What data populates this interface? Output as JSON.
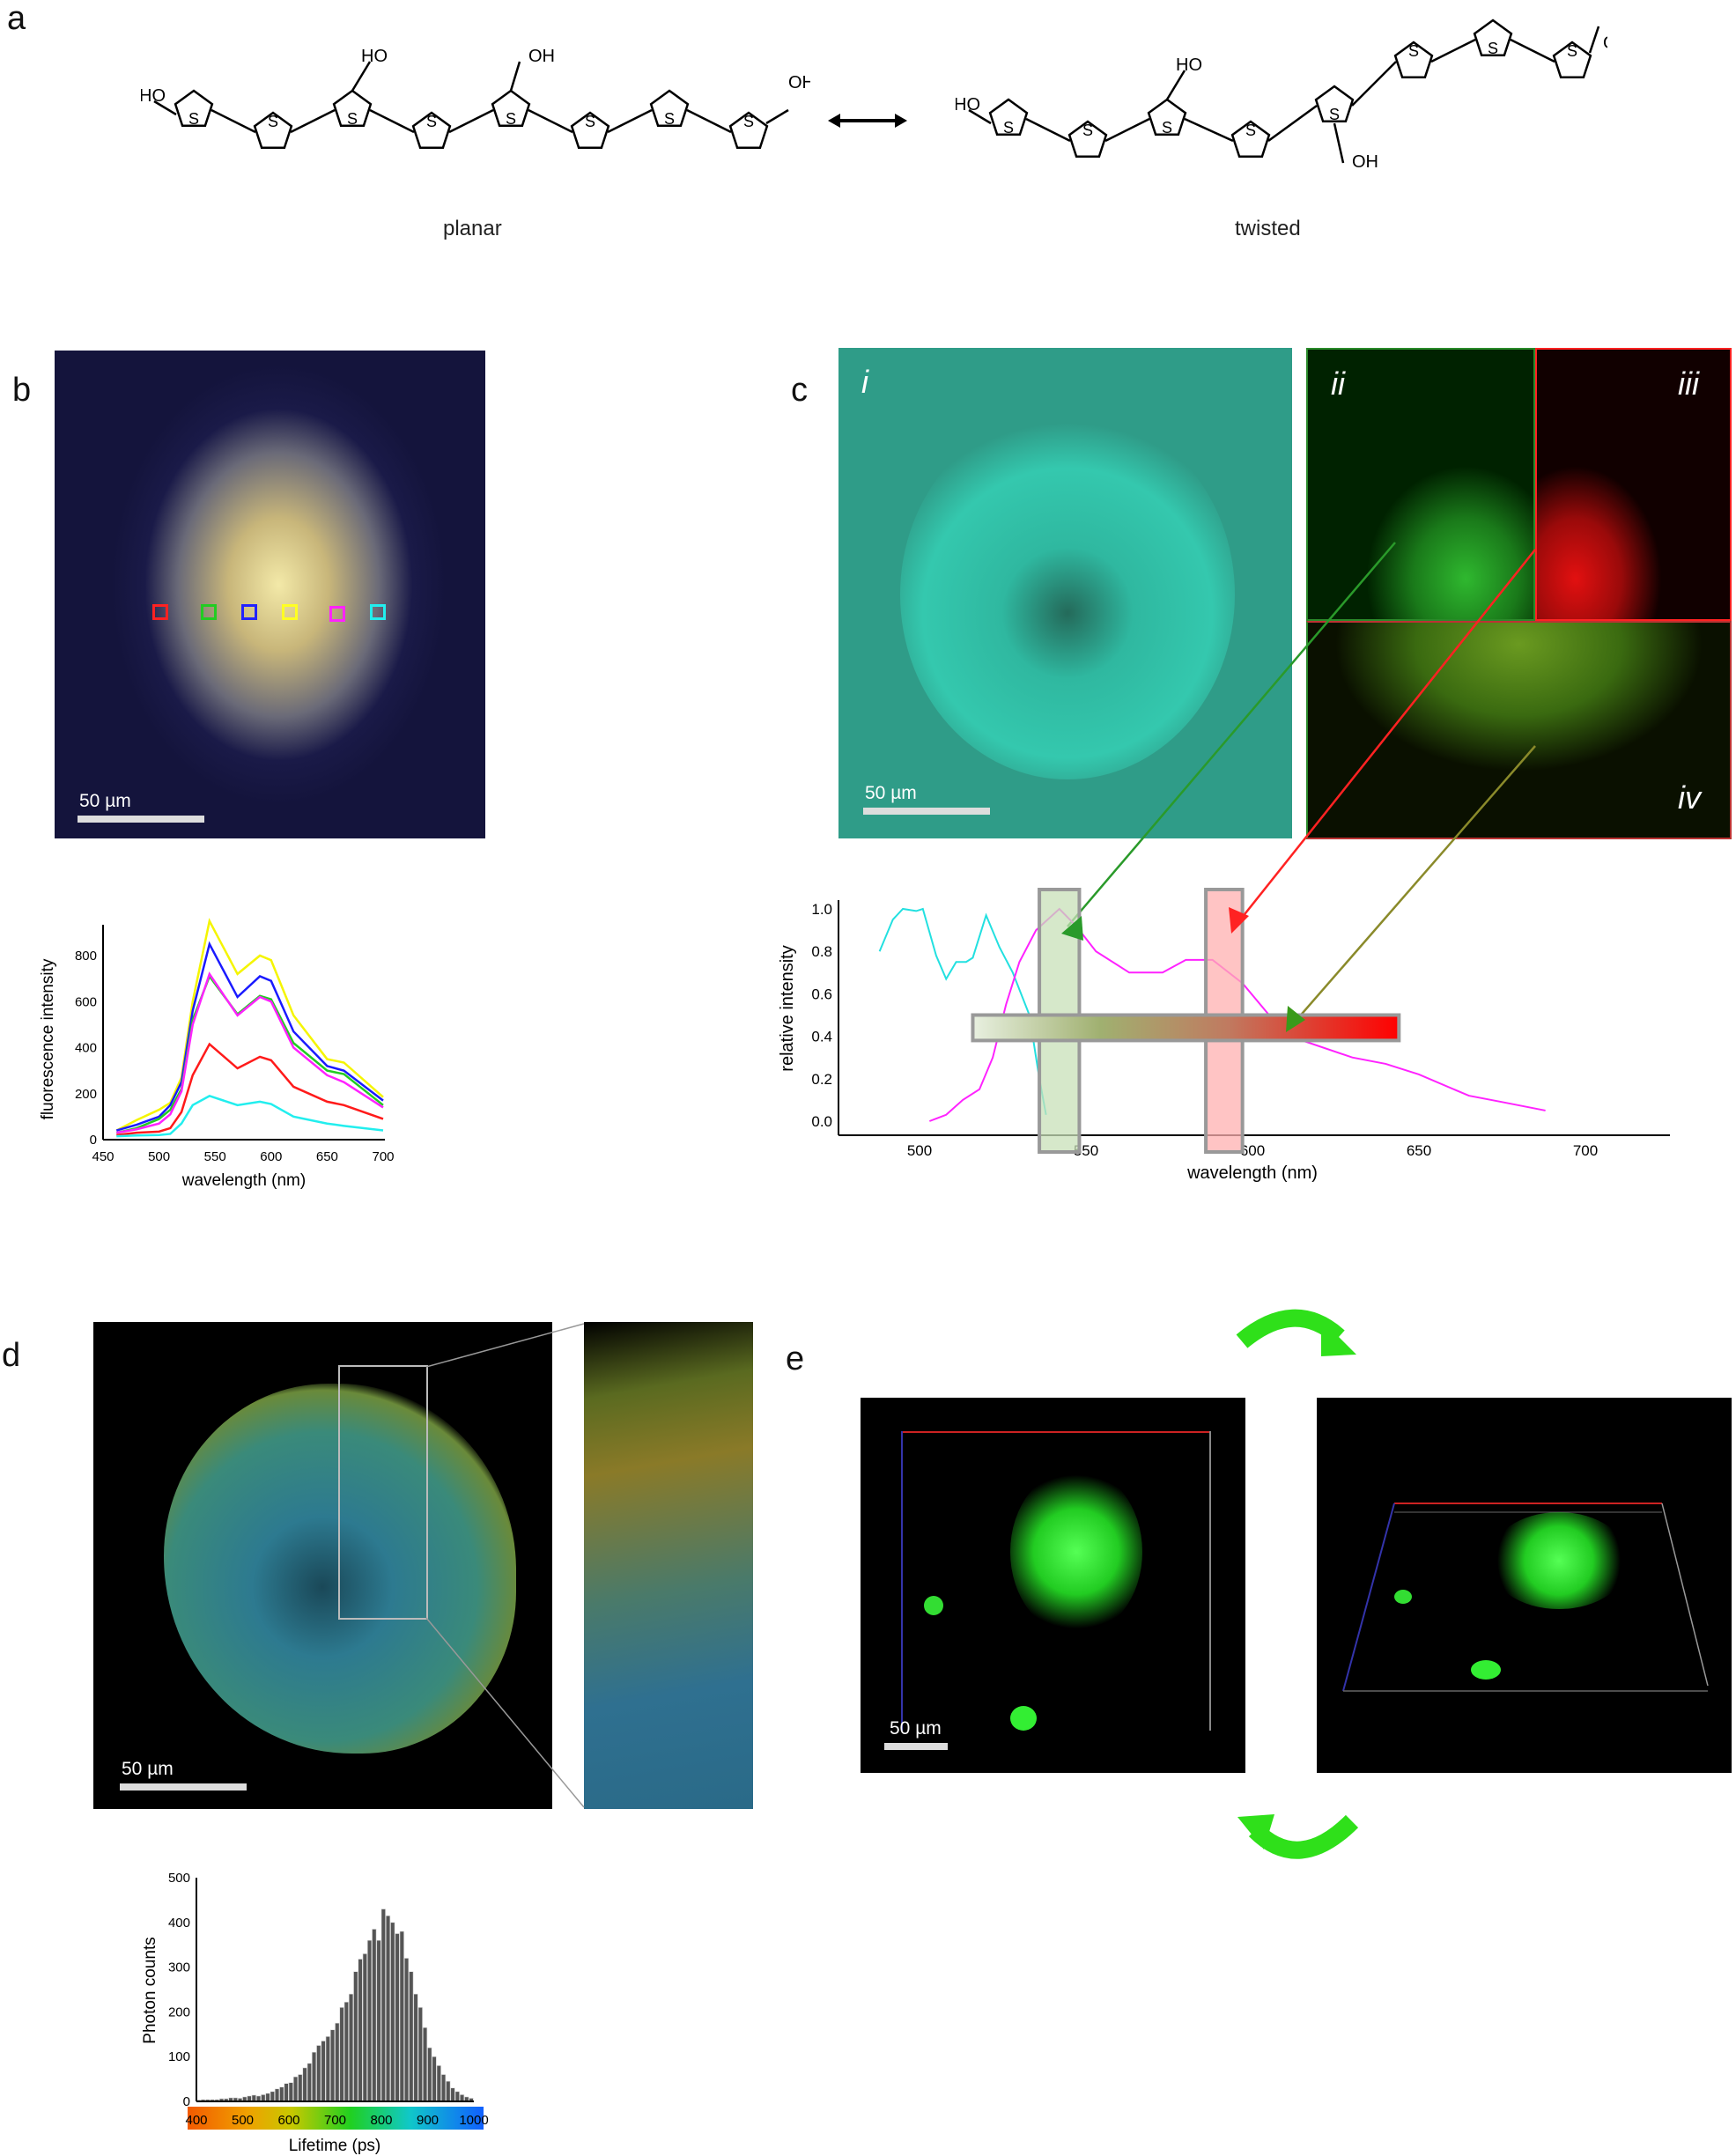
{
  "panels": {
    "a": "a",
    "b": "b",
    "c": "c",
    "d": "d",
    "e": "e"
  },
  "panel_a": {
    "planar_label": "planar",
    "twisted_label": "twisted",
    "atoms": {
      "ho": "HO",
      "oh": "OH",
      "s": "S",
      "o": "O"
    }
  },
  "panel_b": {
    "scale_label": "50 µm"
  },
  "panel_c": {
    "scale_label": "50 µm",
    "sub": [
      "i",
      "ii",
      "iii",
      "iv"
    ]
  },
  "panel_d": {
    "scale_label": "50 µm"
  },
  "panel_e": {
    "scale_label": "50 µm"
  },
  "colors": {
    "green_arrow": "#2fe01a",
    "red": "#ff1a1a",
    "green_frame": "#2a8a2a"
  },
  "chart_data": [
    {
      "type": "line",
      "id": "b",
      "xlabel": "wavelength (nm)",
      "ylabel": "fluorescence intensity",
      "xlim": [
        450,
        700
      ],
      "ylim": [
        0,
        950
      ],
      "xticks": [
        450,
        500,
        550,
        600,
        650,
        700
      ],
      "yticks": [
        0,
        200,
        400,
        600,
        800
      ],
      "x": [
        462,
        480,
        500,
        510,
        520,
        530,
        545,
        570,
        590,
        600,
        620,
        650,
        665,
        700
      ],
      "series": [
        {
          "name": "yellow",
          "color": "#f5f500",
          "values": [
            40,
            85,
            130,
            160,
            270,
            600,
            950,
            720,
            800,
            780,
            540,
            350,
            335,
            185
          ]
        },
        {
          "name": "blue",
          "color": "#1a1aff",
          "values": [
            40,
            65,
            100,
            150,
            250,
            560,
            850,
            620,
            710,
            690,
            470,
            320,
            300,
            170
          ]
        },
        {
          "name": "green",
          "color": "#22cc22",
          "values": [
            30,
            50,
            90,
            130,
            220,
            520,
            710,
            545,
            625,
            610,
            420,
            300,
            285,
            150
          ]
        },
        {
          "name": "magenta",
          "color": "#ff22ff",
          "values": [
            30,
            45,
            70,
            110,
            210,
            500,
            720,
            540,
            620,
            600,
            400,
            280,
            250,
            140
          ]
        },
        {
          "name": "red",
          "color": "#ff1a1a",
          "values": [
            20,
            30,
            35,
            50,
            120,
            280,
            415,
            310,
            360,
            345,
            230,
            165,
            150,
            90
          ]
        },
        {
          "name": "cyan",
          "color": "#22eeee",
          "values": [
            15,
            18,
            20,
            25,
            70,
            150,
            190,
            150,
            165,
            155,
            100,
            70,
            60,
            40
          ]
        }
      ]
    },
    {
      "type": "line",
      "id": "c",
      "xlabel": "wavelength (nm)",
      "ylabel": "relative intensity",
      "xlim": [
        476,
        725
      ],
      "ylim": [
        0,
        1.05
      ],
      "xticks": [
        500,
        550,
        600,
        650,
        700
      ],
      "yticks": [
        "0.0",
        "0.2",
        "0.4",
        "0.6",
        "0.8",
        "1.0"
      ],
      "series": [
        {
          "name": "excitation",
          "color": "#22e0e0",
          "x": [
            488,
            492,
            495,
            499,
            501,
            505,
            508,
            511,
            514,
            516,
            520,
            524,
            528,
            533,
            536,
            538
          ],
          "values": [
            0.8,
            0.95,
            1.0,
            0.99,
            1.0,
            0.78,
            0.67,
            0.75,
            0.75,
            0.77,
            0.97,
            0.82,
            0.7,
            0.5,
            0.2,
            0.03
          ]
        },
        {
          "name": "emission",
          "color": "#ff22ff",
          "x": [
            503,
            508,
            513,
            518,
            522,
            526,
            530,
            535,
            542,
            547,
            553,
            563,
            573,
            580,
            588,
            597,
            605,
            615,
            630,
            640,
            650,
            665,
            675,
            688
          ],
          "values": [
            0,
            0.03,
            0.1,
            0.15,
            0.3,
            0.55,
            0.75,
            0.9,
            1.0,
            0.92,
            0.8,
            0.7,
            0.7,
            0.76,
            0.76,
            0.65,
            0.5,
            0.38,
            0.3,
            0.27,
            0.22,
            0.12,
            0.09,
            0.05
          ]
        }
      ],
      "bands": [
        {
          "name": "green-band",
          "from": 536,
          "to": 548,
          "color": "#c8e0b8"
        },
        {
          "name": "red-band",
          "from": 586,
          "to": 597,
          "color": "#ffb0b0"
        }
      ],
      "gradient_bar": {
        "from": 516,
        "to": 644,
        "y": [
          0.38,
          0.5
        ]
      }
    },
    {
      "type": "bar",
      "id": "d",
      "xlabel": "Lifetime (ps)",
      "ylabel": "Photon counts",
      "xlim": [
        400,
        1000
      ],
      "ylim": [
        0,
        500
      ],
      "xticks": [
        400,
        500,
        600,
        700,
        800,
        900,
        1000
      ],
      "yticks": [
        0,
        100,
        200,
        300,
        400,
        500
      ],
      "bin_width": 10,
      "x_start": 400,
      "values": [
        3,
        4,
        4,
        4,
        4,
        6,
        6,
        8,
        8,
        7,
        10,
        12,
        14,
        12,
        15,
        18,
        22,
        28,
        32,
        40,
        42,
        55,
        60,
        75,
        85,
        110,
        125,
        135,
        145,
        160,
        175,
        210,
        222,
        240,
        290,
        318,
        330,
        360,
        385,
        360,
        430,
        415,
        400,
        375,
        380,
        320,
        290,
        240,
        210,
        165,
        120,
        100,
        80,
        60,
        45,
        30,
        22,
        15,
        10,
        7
      ]
    }
  ]
}
